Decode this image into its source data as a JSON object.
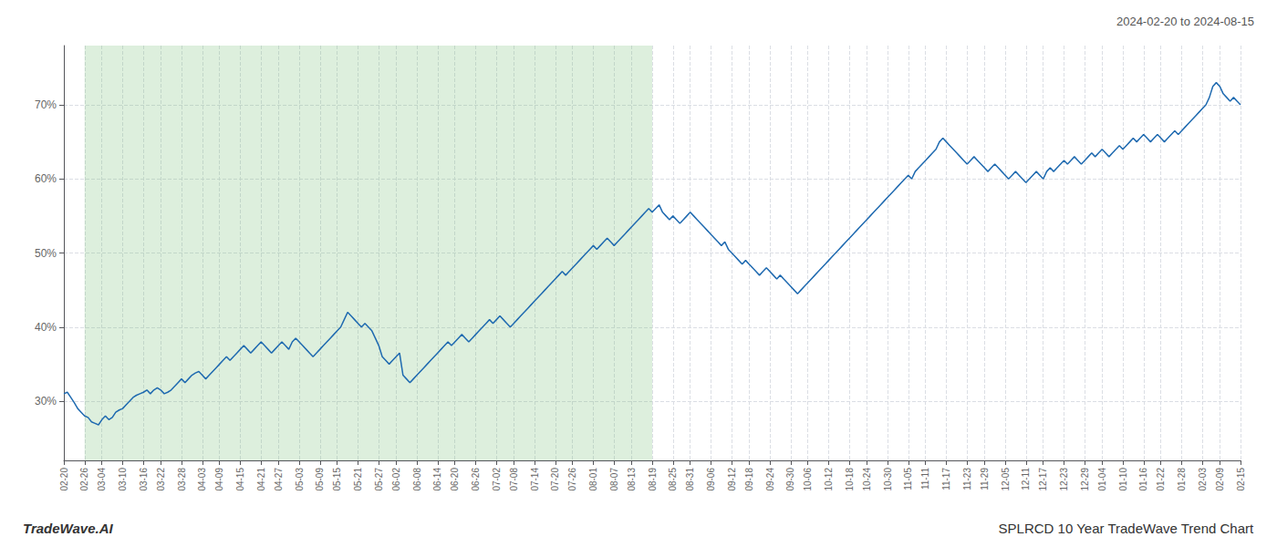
{
  "chart_data": {
    "type": "line",
    "title": "SPLRCD 10 Year TradeWave Trend Chart",
    "subtitle": "2024-02-20 to 2024-08-15",
    "annotations": [
      "TradeWave.AI"
    ],
    "color": "#1f6ab0",
    "grid": true,
    "shade": {
      "from": "02-26",
      "to": "08-19"
    },
    "ylim": [
      22,
      78
    ],
    "yticks": [
      {
        "value": 30,
        "label": "30%"
      },
      {
        "value": 40,
        "label": "40%"
      },
      {
        "value": 50,
        "label": "50%"
      },
      {
        "value": 60,
        "label": "60%"
      },
      {
        "value": 70,
        "label": "70%"
      }
    ],
    "categories": [
      "02-20",
      null,
      null,
      null,
      null,
      null,
      "02-26",
      null,
      null,
      null,
      null,
      "03-04",
      null,
      null,
      null,
      null,
      null,
      "03-10",
      null,
      null,
      null,
      null,
      null,
      "03-16",
      null,
      null,
      null,
      null,
      "03-22",
      null,
      null,
      null,
      null,
      null,
      "03-28",
      null,
      null,
      null,
      null,
      null,
      "04-03",
      null,
      null,
      null,
      null,
      "04-09",
      null,
      null,
      null,
      null,
      null,
      "04-15",
      null,
      null,
      null,
      null,
      null,
      "04-21",
      null,
      null,
      null,
      null,
      "04-27",
      null,
      null,
      null,
      null,
      null,
      "05-03",
      null,
      null,
      null,
      null,
      null,
      "05-09",
      null,
      null,
      null,
      null,
      "05-15",
      null,
      null,
      null,
      null,
      null,
      "05-21",
      null,
      null,
      null,
      null,
      null,
      "05-27",
      null,
      null,
      null,
      null,
      "06-02",
      null,
      null,
      null,
      null,
      null,
      "06-08",
      null,
      null,
      null,
      null,
      null,
      "06-14",
      null,
      null,
      null,
      null,
      "06-20",
      null,
      null,
      null,
      null,
      null,
      "06-26",
      null,
      null,
      null,
      null,
      null,
      "07-02",
      null,
      null,
      null,
      null,
      "07-08",
      null,
      null,
      null,
      null,
      null,
      "07-14",
      null,
      null,
      null,
      null,
      null,
      "07-20",
      null,
      null,
      null,
      null,
      "07-26",
      null,
      null,
      null,
      null,
      null,
      "08-01",
      null,
      null,
      null,
      null,
      null,
      "08-07",
      null,
      null,
      null,
      null,
      "08-13",
      null,
      null,
      null,
      null,
      null,
      "08-19",
      null,
      null,
      null,
      null,
      null,
      "08-25",
      null,
      null,
      null,
      null,
      "08-31",
      null,
      null,
      null,
      null,
      null,
      "09-06",
      null,
      null,
      null,
      null,
      null,
      "09-12",
      null,
      null,
      null,
      null,
      "09-18",
      null,
      null,
      null,
      null,
      null,
      "09-24",
      null,
      null,
      null,
      null,
      null,
      "09-30",
      null,
      null,
      null,
      null,
      "10-06",
      null,
      null,
      null,
      null,
      null,
      "10-12",
      null,
      null,
      null,
      null,
      null,
      "10-18",
      null,
      null,
      null,
      null,
      "10-24",
      null,
      null,
      null,
      null,
      null,
      "10-30",
      null,
      null,
      null,
      null,
      null,
      "11-05",
      null,
      null,
      null,
      null,
      "11-11",
      null,
      null,
      null,
      null,
      null,
      "11-17",
      null,
      null,
      null,
      null,
      null,
      "11-23",
      null,
      null,
      null,
      null,
      "11-29",
      null,
      null,
      null,
      null,
      null,
      "12-05",
      null,
      null,
      null,
      null,
      null,
      "12-11",
      null,
      null,
      null,
      null,
      "12-17",
      null,
      null,
      null,
      null,
      null,
      "12-23",
      null,
      null,
      null,
      null,
      null,
      "12-29",
      null,
      null,
      null,
      null,
      "01-04",
      null,
      null,
      null,
      null,
      null,
      "01-10",
      null,
      null,
      null,
      null,
      null,
      "01-16",
      null,
      null,
      null,
      null,
      "01-22",
      null,
      null,
      null,
      null,
      null,
      "01-28",
      null,
      null,
      null,
      null,
      null,
      "02-03",
      null,
      null,
      null,
      null,
      "02-09",
      null,
      null,
      null,
      null,
      null,
      "02-15"
    ],
    "values": [
      31.0,
      31.2,
      30.5,
      29.8,
      29.0,
      28.5,
      28.0,
      27.8,
      27.2,
      27.0,
      26.8,
      27.5,
      28.0,
      27.5,
      27.8,
      28.5,
      28.8,
      29.0,
      29.5,
      30.0,
      30.5,
      30.8,
      31.0,
      31.2,
      31.5,
      31.0,
      31.5,
      31.8,
      31.5,
      31.0,
      31.2,
      31.5,
      32.0,
      32.5,
      33.0,
      32.5,
      33.0,
      33.5,
      33.8,
      34.0,
      33.5,
      33.0,
      33.5,
      34.0,
      34.5,
      35.0,
      35.5,
      36.0,
      35.5,
      36.0,
      36.5,
      37.0,
      37.5,
      37.0,
      36.5,
      37.0,
      37.5,
      38.0,
      37.5,
      37.0,
      36.5,
      37.0,
      37.5,
      38.0,
      37.5,
      37.0,
      38.0,
      38.5,
      38.0,
      37.5,
      37.0,
      36.5,
      36.0,
      36.5,
      37.0,
      37.5,
      38.0,
      38.5,
      39.0,
      39.5,
      40.0,
      41.0,
      42.0,
      41.5,
      41.0,
      40.5,
      40.0,
      40.5,
      40.0,
      39.5,
      38.5,
      37.5,
      36.0,
      35.5,
      35.0,
      35.5,
      36.0,
      36.5,
      33.5,
      33.0,
      32.5,
      33.0,
      33.5,
      34.0,
      34.5,
      35.0,
      35.5,
      36.0,
      36.5,
      37.0,
      37.5,
      38.0,
      37.5,
      38.0,
      38.5,
      39.0,
      38.5,
      38.0,
      38.5,
      39.0,
      39.5,
      40.0,
      40.5,
      41.0,
      40.5,
      41.0,
      41.5,
      41.0,
      40.5,
      40.0,
      40.5,
      41.0,
      41.5,
      42.0,
      42.5,
      43.0,
      43.5,
      44.0,
      44.5,
      45.0,
      45.5,
      46.0,
      46.5,
      47.0,
      47.5,
      47.0,
      47.5,
      48.0,
      48.5,
      49.0,
      49.5,
      50.0,
      50.5,
      51.0,
      50.5,
      51.0,
      51.5,
      52.0,
      51.5,
      51.0,
      51.5,
      52.0,
      52.5,
      53.0,
      53.5,
      54.0,
      54.5,
      55.0,
      55.5,
      56.0,
      55.5,
      56.0,
      56.5,
      55.5,
      55.0,
      54.5,
      55.0,
      54.5,
      54.0,
      54.5,
      55.0,
      55.5,
      55.0,
      54.5,
      54.0,
      53.5,
      53.0,
      52.5,
      52.0,
      51.5,
      51.0,
      51.5,
      50.5,
      50.0,
      49.5,
      49.0,
      48.5,
      49.0,
      48.5,
      48.0,
      47.5,
      47.0,
      47.5,
      48.0,
      47.5,
      47.0,
      46.5,
      47.0,
      46.5,
      46.0,
      45.5,
      45.0,
      44.5,
      45.0,
      45.5,
      46.0,
      46.5,
      47.0,
      47.5,
      48.0,
      48.5,
      49.0,
      49.5,
      50.0,
      50.5,
      51.0,
      51.5,
      52.0,
      52.5,
      53.0,
      53.5,
      54.0,
      54.5,
      55.0,
      55.5,
      56.0,
      56.5,
      57.0,
      57.5,
      58.0,
      58.5,
      59.0,
      59.5,
      60.0,
      60.5,
      60.0,
      61.0,
      61.5,
      62.0,
      62.5,
      63.0,
      63.5,
      64.0,
      65.0,
      65.5,
      65.0,
      64.5,
      64.0,
      63.5,
      63.0,
      62.5,
      62.0,
      62.5,
      63.0,
      62.5,
      62.0,
      61.5,
      61.0,
      61.5,
      62.0,
      61.5,
      61.0,
      60.5,
      60.0,
      60.5,
      61.0,
      60.5,
      60.0,
      59.5,
      60.0,
      60.5,
      61.0,
      60.5,
      60.0,
      61.0,
      61.5,
      61.0,
      61.5,
      62.0,
      62.5,
      62.0,
      62.5,
      63.0,
      62.5,
      62.0,
      62.5,
      63.0,
      63.5,
      63.0,
      63.5,
      64.0,
      63.5,
      63.0,
      63.5,
      64.0,
      64.5,
      64.0,
      64.5,
      65.0,
      65.5,
      65.0,
      65.5,
      66.0,
      65.5,
      65.0,
      65.5,
      66.0,
      65.5,
      65.0,
      65.5,
      66.0,
      66.5,
      66.0,
      66.5,
      67.0,
      67.5,
      68.0,
      68.5,
      69.0,
      69.5,
      70.0,
      71.0,
      72.5,
      73.0,
      72.5,
      71.5,
      71.0,
      70.5,
      71.0,
      70.5,
      70.0
    ]
  }
}
